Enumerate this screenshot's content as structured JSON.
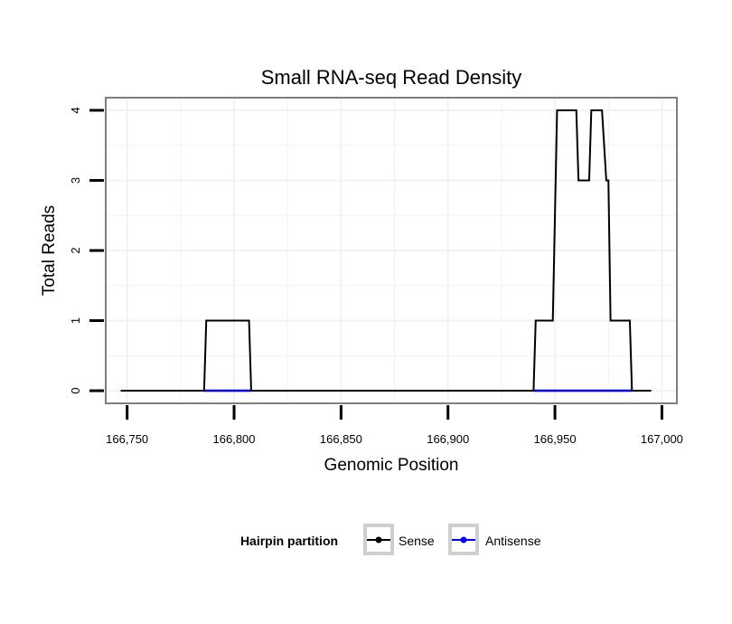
{
  "chart_data": {
    "type": "line",
    "title": "Small RNA-seq Read Density",
    "xlabel": "Genomic Position",
    "ylabel": "Total Reads",
    "xlim": [
      166740,
      167007
    ],
    "ylim": [
      -0.18,
      4.18
    ],
    "x_ticks": [
      166750,
      166800,
      166850,
      166900,
      166950,
      167000
    ],
    "x_tick_labels": [
      "166,750",
      "166,800",
      "166,850",
      "166,900",
      "166,950",
      "167,000"
    ],
    "y_ticks": [
      0,
      1,
      2,
      3,
      4
    ],
    "y_tick_labels": [
      "0",
      "1",
      "2",
      "3",
      "4"
    ],
    "grid": true,
    "legend": {
      "title": "Hairpin partition",
      "position": "bottom",
      "entries": [
        {
          "name": "Sense",
          "color": "#000000"
        },
        {
          "name": "Antisense",
          "color": "#0000ff"
        }
      ]
    },
    "series": [
      {
        "name": "Sense",
        "color": "#000000",
        "x": [
          166747,
          166786,
          166787,
          166807,
          166808,
          166940,
          166941,
          166949,
          166951,
          166960,
          166961,
          166966,
          166967,
          166972,
          166974,
          166975,
          166976,
          166985,
          166986,
          166995
        ],
        "y": [
          0,
          0,
          1,
          1,
          0,
          0,
          1,
          1,
          4,
          4,
          3,
          3,
          4,
          4,
          3,
          3,
          1,
          1,
          0,
          0
        ]
      },
      {
        "name": "Antisense",
        "color": "#0000ff",
        "segments": [
          [
            166786,
            166808
          ],
          [
            166940,
            166986
          ]
        ],
        "y": 0
      }
    ]
  }
}
